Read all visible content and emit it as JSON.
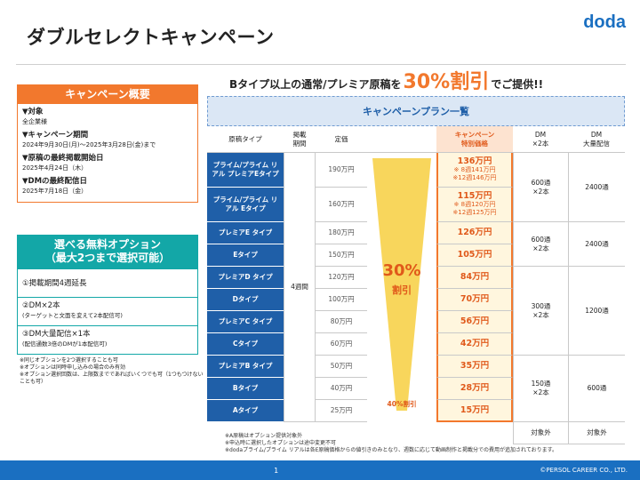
{
  "title": "ダブルセレクトキャンペーン",
  "logo": "doda",
  "left": {
    "campaign_header": "キャンペーン概要",
    "items": [
      {
        "label": "▼対象",
        "value": "全企業様"
      },
      {
        "label": "▼キャンペーン期間",
        "value": "2024年9月30日(月)～2025年3月28日(金)まで"
      },
      {
        "label": "▼原稿の最終掲載開始日",
        "value": "2025年4月24日（木）"
      },
      {
        "label": "▼DMの最終配信日",
        "value": "2025年7月18日（金）"
      }
    ],
    "options_header_1": "選べる無料オプション",
    "options_header_2": "（最大2つまで選択可能）",
    "options": [
      {
        "main": "①掲載期間4週延長",
        "sub": ""
      },
      {
        "main": "②DM×2本",
        "sub": "(ターゲットと文面を変えて2本配信可)"
      },
      {
        "main": "③DM大量配信×1本",
        "sub": "(配信通数3倍のDMが1本配信可)"
      }
    ],
    "notes": [
      "※同じオプションを2つ選択することも可",
      "※オプションは同時申し込みの場合のみ有効",
      "※オプション選択回数は、上限数までであればいくつでも可（1つもつけないことも可）"
    ]
  },
  "subline": {
    "pre": "Bタイプ以上の通常/プレミア原稿を",
    "big": "30%割引",
    "post": "でご提供!!"
  },
  "table": {
    "banner": "キャンペーンプラン一覧",
    "headers": {
      "type": "原稿タイプ",
      "period": "掲載\n期間",
      "price": "定価",
      "special": "キャンペーン\n特別価格",
      "dm2": "DM\n×2本",
      "dmbulk": "DM\n大量配信"
    },
    "period": "4週間",
    "arrow_pct": "30%",
    "arrow_label": "割引",
    "arrow_bottom": "40%割引",
    "rows": [
      {
        "type": "プライム/プライム リアル プレミアEタイプ",
        "price": "190万円",
        "special": "136万円",
        "n1": "※ 8週141万円",
        "n2": "※12週146万円"
      },
      {
        "type": "プライム/プライム リアル Eタイプ",
        "price": "160万円",
        "special": "115万円",
        "n1": "※ 8週120万円",
        "n2": "※12週125万円"
      },
      {
        "type": "プレミアE タイプ",
        "price": "180万円",
        "special": "126万円"
      },
      {
        "type": "Eタイプ",
        "price": "150万円",
        "special": "105万円"
      },
      {
        "type": "プレミアD タイプ",
        "price": "120万円",
        "special": "84万円"
      },
      {
        "type": "Dタイプ",
        "price": "100万円",
        "special": "70万円"
      },
      {
        "type": "プレミアC タイプ",
        "price": "80万円",
        "special": "56万円"
      },
      {
        "type": "Cタイプ",
        "price": "60万円",
        "special": "42万円"
      },
      {
        "type": "プレミアB タイプ",
        "price": "50万円",
        "special": "35万円"
      },
      {
        "type": "Bタイプ",
        "price": "40万円",
        "special": "28万円"
      },
      {
        "type": "Aタイプ",
        "price": "25万円",
        "special": "15万円"
      }
    ],
    "dm": [
      {
        "dm2": "600通\n×2本",
        "bulk": "2400通"
      },
      {
        "dm2": "600通\n×2本",
        "bulk": "2400通"
      },
      {
        "dm2": "300通\n×2本",
        "bulk": "1200通"
      },
      {
        "dm2": "150通\n×2本",
        "bulk": "600通"
      },
      {
        "dm2": "対象外",
        "bulk": "対象外"
      }
    ]
  },
  "footnotes": [
    "※A原稿はオプション提供対象外",
    "※申込時に選択したオプションは途中変更不可",
    "※dodaプライム/プライム リアルは各E原稿価格からの値引きのみとなり、週数に応じて動画制作と掲載分での費用が追加されております。"
  ],
  "footer": {
    "page": "1",
    "copyright": "©PERSOL CAREER CO., LTD."
  },
  "colors": {
    "orange": "#f2782d",
    "teal": "#13a7a7",
    "blue": "#1f5fa8",
    "brand": "#1a6fc1"
  }
}
